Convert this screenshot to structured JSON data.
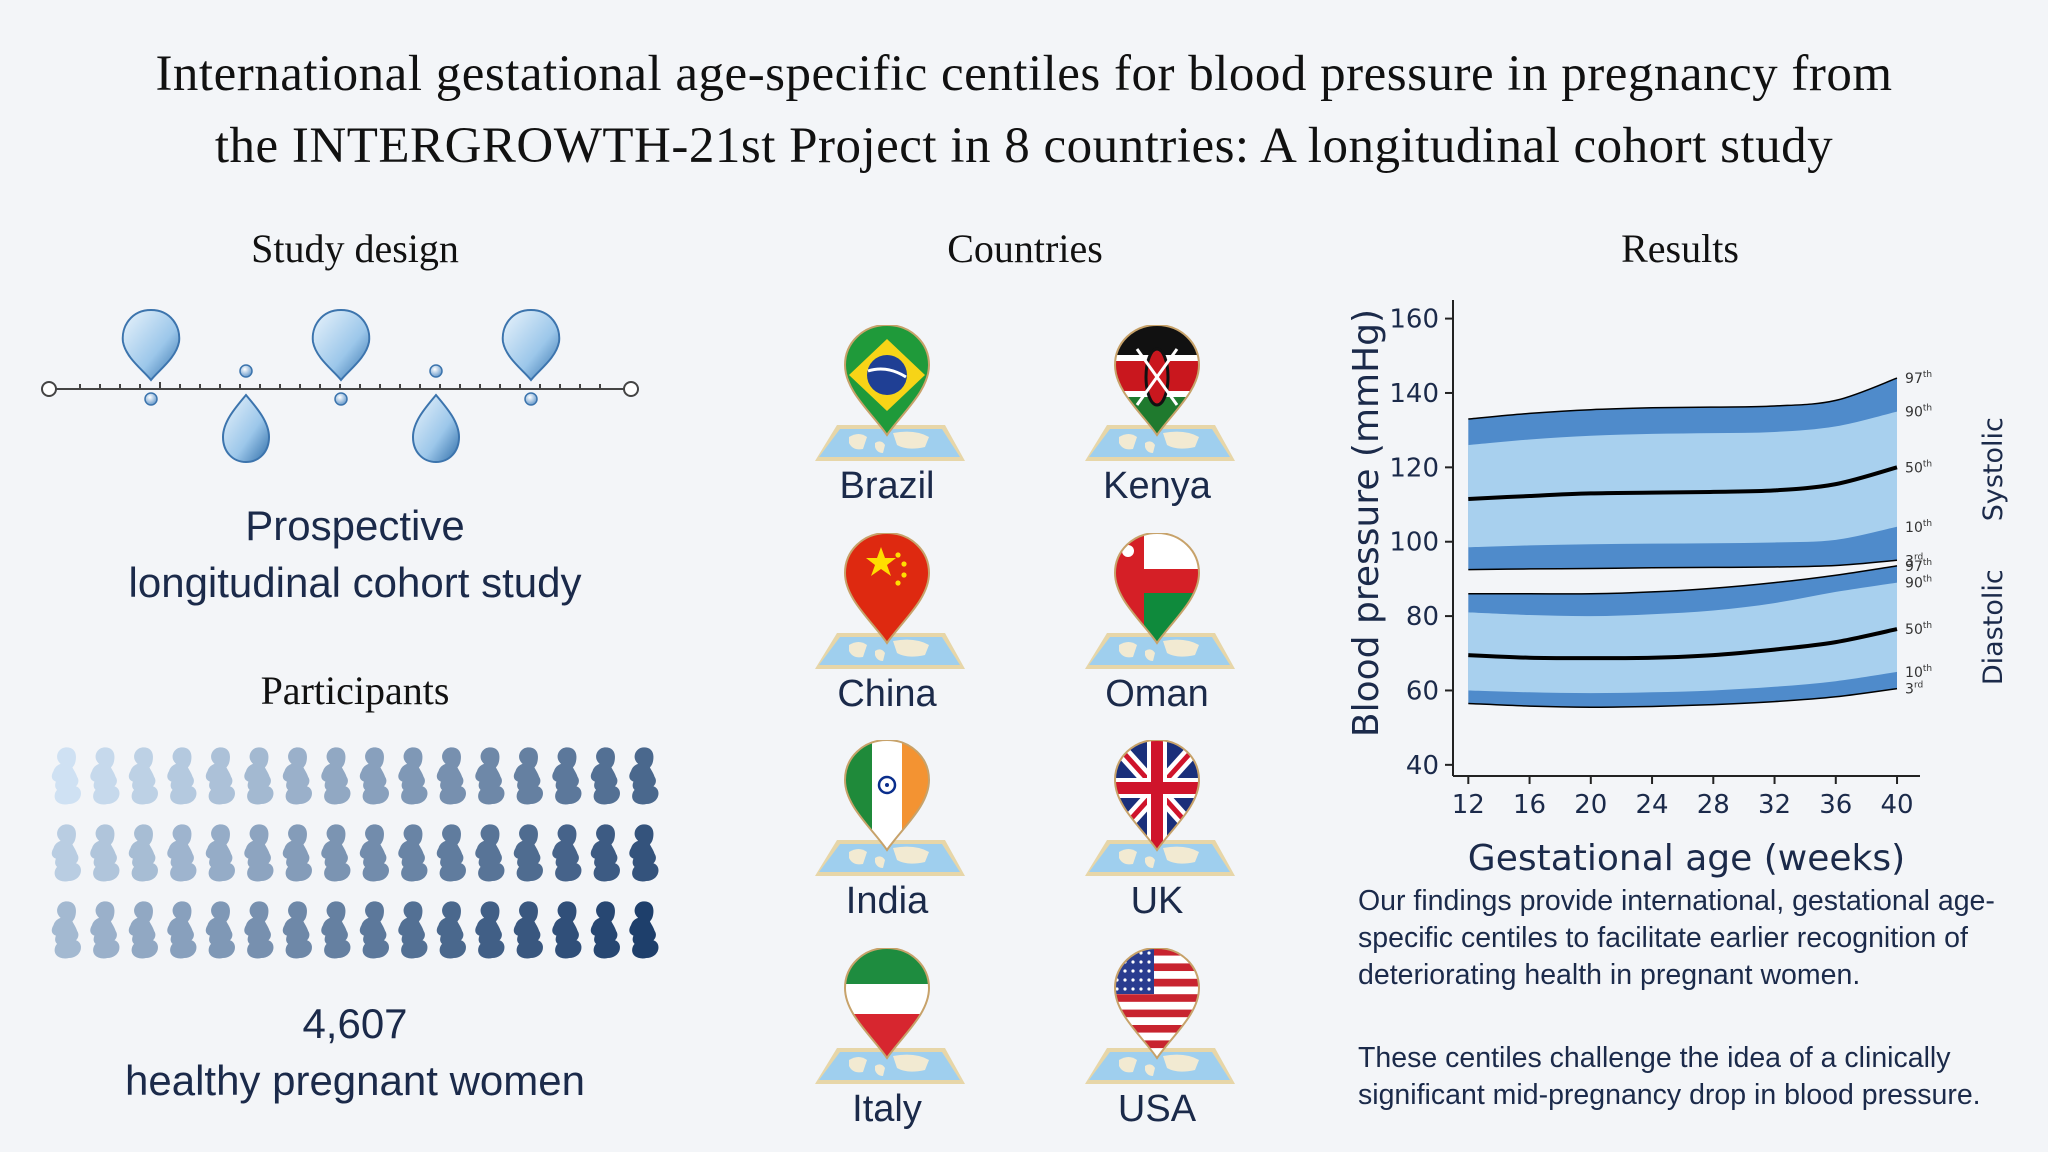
{
  "title": {
    "line1": "International gestational age-specific centiles for blood pressure in pregnancy from",
    "line2": "the INTERGROWTH-21st Project in 8 countries: A longitudinal cohort study"
  },
  "study_design": {
    "heading": "Study design",
    "line1": "Prospective",
    "line2": "longitudinal cohort study"
  },
  "participants": {
    "heading": "Participants",
    "count": "4,607",
    "description": "healthy pregnant women",
    "icon": "pregnant-woman-icon",
    "palette": [
      "#cfe1f3",
      "#1e3f6b"
    ]
  },
  "countries": {
    "heading": "Countries",
    "items": [
      {
        "name": "Brazil",
        "flag": "brazil-flag-icon"
      },
      {
        "name": "Kenya",
        "flag": "kenya-flag-icon"
      },
      {
        "name": "China",
        "flag": "china-flag-icon"
      },
      {
        "name": "Oman",
        "flag": "oman-flag-icon"
      },
      {
        "name": "India",
        "flag": "india-flag-icon"
      },
      {
        "name": "UK",
        "flag": "uk-flag-icon"
      },
      {
        "name": "Italy",
        "flag": "italy-flag-icon"
      },
      {
        "name": "USA",
        "flag": "usa-flag-icon"
      }
    ]
  },
  "results": {
    "heading": "Results",
    "para1": "Our findings provide international, gestational age-specific centiles to facilitate earlier recognition of deteriorating health in pregnant women.",
    "para2": "These centiles challenge the idea of a clinically significant mid-pregnancy drop in blood pressure."
  },
  "chart_data": {
    "type": "area",
    "xlabel": "Gestational age (weeks)",
    "ylabel": "Blood pressure (mmHg)",
    "xlim": [
      11,
      41.5
    ],
    "ylim": [
      37,
      165
    ],
    "xticks": [
      12,
      16,
      20,
      24,
      28,
      32,
      36,
      40
    ],
    "yticks": [
      40,
      60,
      80,
      100,
      120,
      140,
      160
    ],
    "x": [
      12,
      16,
      20,
      24,
      28,
      32,
      36,
      40
    ],
    "colors": {
      "outer_band": "#4f8bcb",
      "inner_band": "#a8d0ee",
      "median": "#000000"
    },
    "groups": [
      {
        "name": "Systolic",
        "centiles": [
          {
            "centile": "97",
            "values": [
              133,
              134.5,
              135.5,
              136,
              136.2,
              136.5,
              138,
              144
            ]
          },
          {
            "centile": "90",
            "values": [
              126,
              127.5,
              128.5,
              129,
              129.2,
              129.5,
              131,
              135
            ]
          },
          {
            "centile": "50",
            "values": [
              111.5,
              112.3,
              113,
              113.2,
              113.4,
              113.8,
              115.5,
              120
            ]
          },
          {
            "centile": "10",
            "values": [
              98.5,
              99,
              99.3,
              99.5,
              99.6,
              99.8,
              100.5,
              104
            ]
          },
          {
            "centile": "3",
            "values": [
              92.5,
              92.7,
              92.8,
              93,
              93.1,
              93.2,
              93.6,
              95
            ]
          }
        ]
      },
      {
        "name": "Diastolic",
        "centiles": [
          {
            "centile": "97",
            "values": [
              86,
              86,
              86,
              86.5,
              87.5,
              89,
              91,
              93.5
            ]
          },
          {
            "centile": "90",
            "values": [
              81,
              80.3,
              80,
              80.5,
              81.5,
              83.5,
              86.5,
              89
            ]
          },
          {
            "centile": "50",
            "values": [
              69.5,
              68.8,
              68.7,
              68.8,
              69.5,
              71,
              73,
              76.5
            ]
          },
          {
            "centile": "10",
            "values": [
              60,
              59.5,
              59.3,
              59.5,
              60,
              61,
              62.5,
              65
            ]
          },
          {
            "centile": "3",
            "values": [
              56.5,
              55.8,
              55.5,
              55.7,
              56.2,
              57,
              58.3,
              60.5
            ]
          }
        ]
      }
    ]
  }
}
